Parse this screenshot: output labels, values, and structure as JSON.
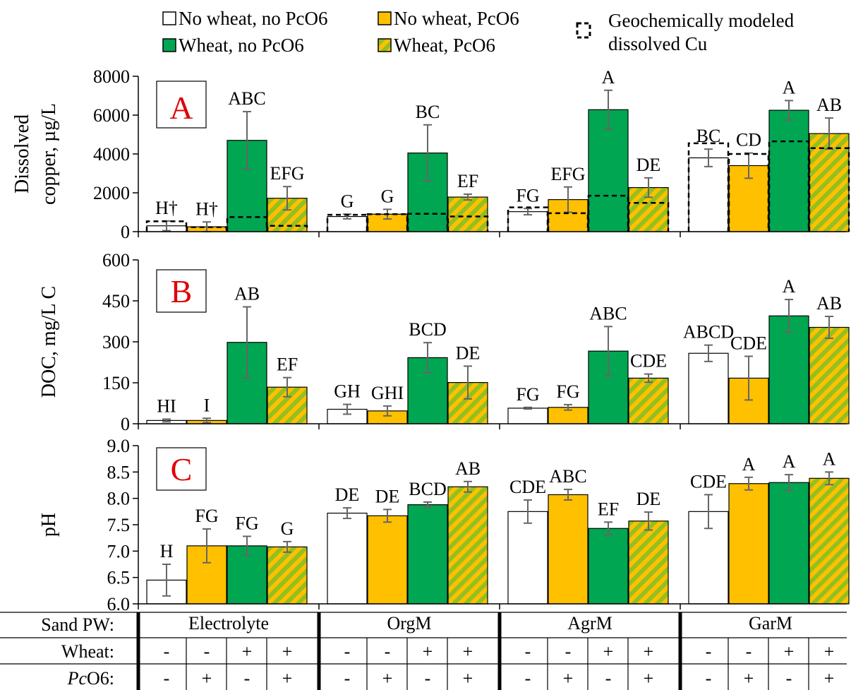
{
  "colors": {
    "no_wheat_no_pco6": "#ffffff",
    "no_wheat_pco6": "#ffc000",
    "wheat_no_pco6": "#00a651",
    "wheat_pco6_stripe_a": "#92c020",
    "wheat_pco6_stripe_b": "#ffc000",
    "panel_letter": "#e00000",
    "error_bar": "#666666"
  },
  "legend": [
    {
      "label": "No wheat, no PcO6",
      "style": "white"
    },
    {
      "label": "No wheat, PcO6",
      "style": "yellow"
    },
    {
      "label": "Geochemically modeled dissolved Cu",
      "style": "dashed"
    },
    {
      "label": "Wheat, no PcO6",
      "style": "green"
    },
    {
      "label": "Wheat, PcO6",
      "style": "striped"
    }
  ],
  "legend_geochem_line1": "Geochemically modeled",
  "legend_geochem_line2": "dissolved Cu",
  "chart_data": [
    {
      "type": "bar",
      "panel": "A",
      "ylabel": "Dissolved copper, µg/L",
      "ylabel_line1": "Dissolved",
      "ylabel_line2": "copper, µg/L",
      "ylim": [
        0,
        8000
      ],
      "yticks": [
        "0",
        "2000",
        "4000",
        "6000",
        "8000"
      ],
      "categories": [
        "Electrolyte",
        "OrgM",
        "AgrM",
        "GarM"
      ],
      "series": [
        {
          "name": "No wheat, no PcO6",
          "values": [
            300,
            780,
            1030,
            3800
          ],
          "errors": [
            250,
            120,
            160,
            450
          ],
          "letters": [
            "H†",
            "G",
            "FG",
            "BC"
          ]
        },
        {
          "name": "No wheat, PcO6",
          "values": [
            250,
            900,
            1650,
            3400
          ],
          "errors": [
            250,
            250,
            650,
            650
          ],
          "letters": [
            "H†",
            "G",
            "EFG",
            "CD"
          ]
        },
        {
          "name": "Wheat, no PcO6",
          "values": [
            4700,
            4050,
            6280,
            6250
          ],
          "errors": [
            1480,
            1450,
            1000,
            500
          ],
          "letters": [
            "ABC",
            "BC",
            "A",
            "A"
          ]
        },
        {
          "name": "Wheat, PcO6",
          "values": [
            1720,
            1780,
            2270,
            5050
          ],
          "errors": [
            600,
            150,
            500,
            800
          ],
          "letters": [
            "EFG",
            "EF",
            "DE",
            "AB"
          ]
        }
      ],
      "modeled_dissolved_cu": [
        [
          530,
          230,
          750,
          300
        ],
        [
          870,
          900,
          920,
          780
        ],
        [
          1250,
          950,
          1850,
          1480
        ],
        [
          4550,
          4000,
          4650,
          4300
        ]
      ]
    },
    {
      "type": "bar",
      "panel": "B",
      "ylabel": "DOC, mg/L C",
      "ylim": [
        0,
        600
      ],
      "yticks": [
        "0",
        "150",
        "300",
        "450",
        "600"
      ],
      "categories": [
        "Electrolyte",
        "OrgM",
        "AgrM",
        "GarM"
      ],
      "series": [
        {
          "name": "No wheat, no PcO6",
          "values": [
            12,
            53,
            57,
            258
          ],
          "errors": [
            5,
            18,
            3,
            30
          ],
          "letters": [
            "HI",
            "GH",
            "FG",
            "ABCD"
          ]
        },
        {
          "name": "No wheat, PcO6",
          "values": [
            12,
            47,
            60,
            167
          ],
          "errors": [
            8,
            18,
            10,
            80
          ],
          "letters": [
            "I",
            "GHI",
            "FG",
            "CDE"
          ]
        },
        {
          "name": "Wheat, no PcO6",
          "values": [
            298,
            242,
            266,
            395
          ],
          "errors": [
            130,
            55,
            90,
            60
          ],
          "letters": [
            "AB",
            "BCD",
            "ABC",
            "A"
          ]
        },
        {
          "name": "Wheat, PcO6",
          "values": [
            134,
            151,
            167,
            353
          ],
          "errors": [
            35,
            60,
            15,
            40
          ],
          "letters": [
            "EF",
            "DE",
            "CDE",
            "AB"
          ]
        }
      ]
    },
    {
      "type": "bar",
      "panel": "C",
      "ylabel": "pH",
      "ylim": [
        6.0,
        9.0
      ],
      "yticks": [
        "6.0",
        "6.5",
        "7.0",
        "7.5",
        "8.0",
        "8.5",
        "9.0"
      ],
      "categories": [
        "Electrolyte",
        "OrgM",
        "AgrM",
        "GarM"
      ],
      "series": [
        {
          "name": "No wheat, no PcO6",
          "values": [
            6.45,
            7.72,
            7.75,
            7.75
          ],
          "errors": [
            0.3,
            0.1,
            0.22,
            0.32
          ],
          "letters": [
            "H",
            "DE",
            "CDE",
            "CDE"
          ]
        },
        {
          "name": "No wheat, PcO6",
          "values": [
            7.1,
            7.67,
            8.07,
            8.28
          ],
          "errors": [
            0.32,
            0.12,
            0.1,
            0.12
          ],
          "letters": [
            "FG",
            "DE",
            "ABC",
            "A"
          ]
        },
        {
          "name": "Wheat, no PcO6",
          "values": [
            7.1,
            7.88,
            7.43,
            8.3
          ],
          "errors": [
            0.18,
            0.05,
            0.12,
            0.15
          ],
          "letters": [
            "FG",
            "BCD",
            "EF",
            "A"
          ]
        },
        {
          "name": "Wheat, PcO6",
          "values": [
            7.08,
            8.22,
            7.57,
            8.38
          ],
          "errors": [
            0.1,
            0.1,
            0.17,
            0.12
          ],
          "letters": [
            "G",
            "AB",
            "DE",
            "A"
          ]
        }
      ]
    }
  ],
  "table": {
    "row_labels": [
      "Sand PW:",
      "Wheat:",
      "PcO6:"
    ],
    "groups": [
      "Electrolyte",
      "OrgM",
      "AgrM",
      "GarM"
    ],
    "wheat": [
      "-",
      "-",
      "+",
      "+"
    ],
    "pco6": [
      "-",
      "+",
      "-",
      "+"
    ]
  }
}
